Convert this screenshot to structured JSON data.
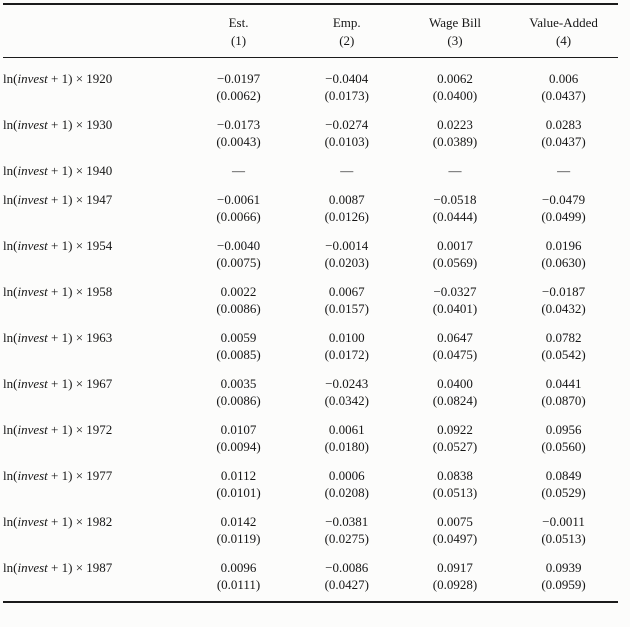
{
  "table": {
    "header": {
      "columns": [
        {
          "label": "Est.",
          "number": "(1)"
        },
        {
          "label": "Emp.",
          "number": "(2)"
        },
        {
          "label": "Wage Bill",
          "number": "(3)"
        },
        {
          "label": "Value-Added",
          "number": "(4)"
        }
      ]
    },
    "row_label": {
      "prefix": "ln(",
      "variable": "invest",
      "suffix": " + 1) × "
    },
    "placeholder": "—",
    "rows": [
      {
        "year": "1920",
        "cells": [
          {
            "est": "−0.0197",
            "se": "(0.0062)"
          },
          {
            "est": "−0.0404",
            "se": "(0.0173)"
          },
          {
            "est": "0.0062",
            "se": "(0.0400)"
          },
          {
            "est": "0.006",
            "se": "(0.0437)"
          }
        ]
      },
      {
        "year": "1930",
        "cells": [
          {
            "est": "−0.0173",
            "se": "(0.0043)"
          },
          {
            "est": "−0.0274",
            "se": "(0.0103)"
          },
          {
            "est": "0.0223",
            "se": "(0.0389)"
          },
          {
            "est": "0.0283",
            "se": "(0.0437)"
          }
        ]
      },
      {
        "year": "1940",
        "cells": [
          {
            "est": "—",
            "se": ""
          },
          {
            "est": "—",
            "se": ""
          },
          {
            "est": "—",
            "se": ""
          },
          {
            "est": "—",
            "se": ""
          }
        ]
      },
      {
        "year": "1947",
        "cells": [
          {
            "est": "−0.0061",
            "se": "(0.0066)"
          },
          {
            "est": "0.0087",
            "se": "(0.0126)"
          },
          {
            "est": "−0.0518",
            "se": "(0.0444)"
          },
          {
            "est": "−0.0479",
            "se": "(0.0499)"
          }
        ]
      },
      {
        "year": "1954",
        "cells": [
          {
            "est": "−0.0040",
            "se": "(0.0075)"
          },
          {
            "est": "−0.0014",
            "se": "(0.0203)"
          },
          {
            "est": "0.0017",
            "se": "(0.0569)"
          },
          {
            "est": "0.0196",
            "se": "(0.0630)"
          }
        ]
      },
      {
        "year": "1958",
        "cells": [
          {
            "est": "0.0022",
            "se": "(0.0086)"
          },
          {
            "est": "0.0067",
            "se": "(0.0157)"
          },
          {
            "est": "−0.0327",
            "se": "(0.0401)"
          },
          {
            "est": "−0.0187",
            "se": "(0.0432)"
          }
        ]
      },
      {
        "year": "1963",
        "cells": [
          {
            "est": "0.0059",
            "se": "(0.0085)"
          },
          {
            "est": "0.0100",
            "se": "(0.0172)"
          },
          {
            "est": "0.0647",
            "se": "(0.0475)"
          },
          {
            "est": "0.0782",
            "se": "(0.0542)"
          }
        ]
      },
      {
        "year": "1967",
        "cells": [
          {
            "est": "0.0035",
            "se": "(0.0086)"
          },
          {
            "est": "−0.0243",
            "se": "(0.0342)"
          },
          {
            "est": "0.0400",
            "se": "(0.0824)"
          },
          {
            "est": "0.0441",
            "se": "(0.0870)"
          }
        ]
      },
      {
        "year": "1972",
        "cells": [
          {
            "est": "0.0107",
            "se": "(0.0094)"
          },
          {
            "est": "0.0061",
            "se": "(0.0180)"
          },
          {
            "est": "0.0922",
            "se": "(0.0527)"
          },
          {
            "est": "0.0956",
            "se": "(0.0560)"
          }
        ]
      },
      {
        "year": "1977",
        "cells": [
          {
            "est": "0.0112",
            "se": "(0.0101)"
          },
          {
            "est": "0.0006",
            "se": "(0.0208)"
          },
          {
            "est": "0.0838",
            "se": "(0.0513)"
          },
          {
            "est": "0.0849",
            "se": "(0.0529)"
          }
        ]
      },
      {
        "year": "1982",
        "cells": [
          {
            "est": "0.0142",
            "se": "(0.0119)"
          },
          {
            "est": "−0.0381",
            "se": "(0.0275)"
          },
          {
            "est": "0.0075",
            "se": "(0.0497)"
          },
          {
            "est": "−0.0011",
            "se": "(0.0513)"
          }
        ]
      },
      {
        "year": "1987",
        "cells": [
          {
            "est": "0.0096",
            "se": "(0.0111)"
          },
          {
            "est": "−0.0086",
            "se": "(0.0427)"
          },
          {
            "est": "0.0917",
            "se": "(0.0928)"
          },
          {
            "est": "0.0939",
            "se": "(0.0959)"
          }
        ]
      }
    ]
  }
}
